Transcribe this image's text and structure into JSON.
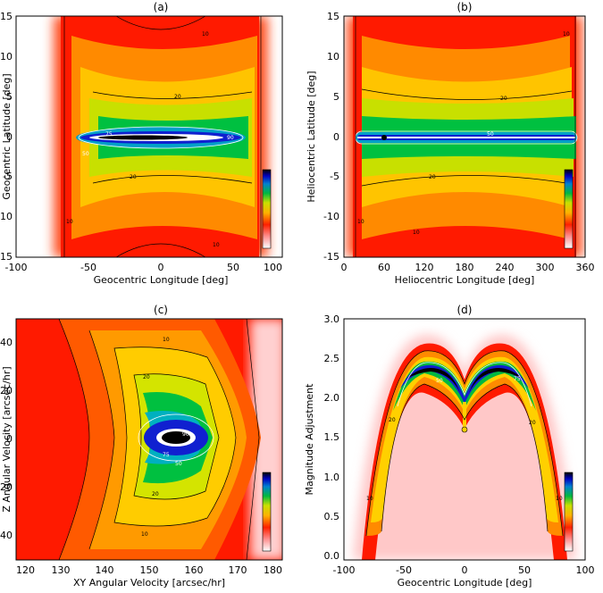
{
  "chart_data": [
    {
      "type": "heatmap",
      "title": "(a)",
      "xlabel": "Geocentric Longitude [deg]",
      "ylabel": "Geocentric Latitude [deg]",
      "xlim": [
        -100,
        100
      ],
      "ylim": [
        -15,
        15
      ],
      "xticks": [
        "-100",
        "-50",
        "0",
        "50",
        "100"
      ],
      "yticks": [
        "-15",
        "-10",
        "-5",
        "0",
        "5",
        "10",
        "15"
      ],
      "contour_labels": [
        "10",
        "10",
        "20",
        "20",
        "50",
        "90",
        "75",
        "10"
      ],
      "colorbar": true
    },
    {
      "type": "heatmap",
      "title": "(b)",
      "xlabel": "Heliocentric Longitude [deg]",
      "ylabel": "Heliocentric Latitude [deg]",
      "xlim": [
        0,
        360
      ],
      "ylim": [
        -15,
        15
      ],
      "xticks": [
        "0",
        "60",
        "120",
        "180",
        "240",
        "300",
        "360"
      ],
      "yticks": [
        "-15",
        "-10",
        "-5",
        "0",
        "5",
        "10",
        "15"
      ],
      "contour_labels": [
        "10",
        "10",
        "20",
        "20",
        "50",
        "10"
      ],
      "colorbar": true
    },
    {
      "type": "heatmap",
      "title": "(c)",
      "xlabel": "XY Angular Velocity [arcsec/hr]",
      "ylabel": "Z Angular Velocity [arcsec/hr]",
      "xlim": [
        120,
        180
      ],
      "ylim": [
        -50,
        50
      ],
      "xticks": [
        "120",
        "130",
        "140",
        "150",
        "160",
        "170",
        "180"
      ],
      "yticks": [
        "-40",
        "-20",
        "0",
        "20",
        "40"
      ],
      "contour_labels": [
        "10",
        "10",
        "20",
        "20",
        "50",
        "75",
        "90"
      ],
      "colorbar": true
    },
    {
      "type": "heatmap",
      "title": "(d)",
      "xlabel": "Geocentric Longitude [deg]",
      "ylabel": "Magnitude Adjustment",
      "xlim": [
        -100,
        100
      ],
      "ylim": [
        -0.05,
        3.0
      ],
      "xticks": [
        "-100",
        "-50",
        "0",
        "50",
        "100"
      ],
      "yticks": [
        "0.0",
        "0.5",
        "1.0",
        "1.5",
        "2.0",
        "2.5",
        "3.0"
      ],
      "contour_labels": [
        "10",
        "10",
        "20",
        "20",
        "50",
        "75"
      ],
      "colorbar": true
    }
  ]
}
